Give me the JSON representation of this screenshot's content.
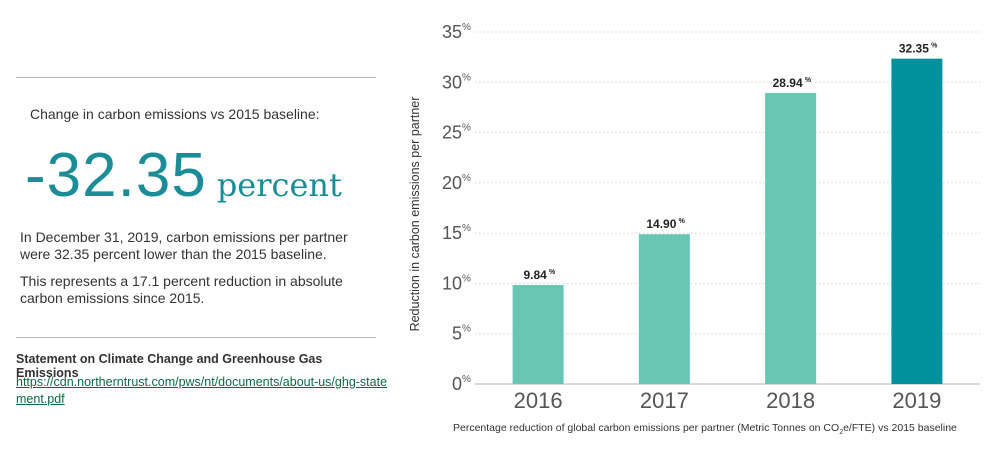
{
  "summary": {
    "kpi_label": "Change in carbon emissions vs 2015 baseline:",
    "kpi_value": "-32.35",
    "kpi_unit": "percent",
    "paragraph_1": "In December 31, 2019, carbon emissions per partner were 32.35 percent lower than the 2015 baseline.",
    "paragraph_2": "This represents a 17.1 percent reduction in absolute carbon emissions since 2015."
  },
  "statement": {
    "title": "Statement on Climate Change and Greenhouse Gas Emissions",
    "url": "https://cdn.northerntrust.com/pws/nt/documents/about-us/ghg-statement.pdf"
  },
  "chart_data": {
    "type": "bar",
    "categories": [
      "2016",
      "2017",
      "2018",
      "2019"
    ],
    "values": [
      9.84,
      14.9,
      28.94,
      32.35
    ],
    "value_labels": [
      "9.84",
      "14.90",
      "28.94",
      "32.35"
    ],
    "value_suffix": "%",
    "ylabel": "Reduction in carbon emissions per partner",
    "xlabel_parts": [
      "Percentage reduction of global carbon emissions per partner (Metric Tonnes on CO",
      "2",
      "e/FTE) vs 2015 baseline"
    ],
    "ylim": [
      0,
      35
    ],
    "yticks": [
      0,
      5,
      10,
      15,
      20,
      25,
      30,
      35
    ],
    "ytick_suffix": "%",
    "grid": true,
    "colors": {
      "bar": "#68c6b3",
      "highlight_bar": "#00919c",
      "highlight_category": "2019",
      "kpi_accent": "#1a8d96",
      "link": "#0b6b43"
    }
  }
}
